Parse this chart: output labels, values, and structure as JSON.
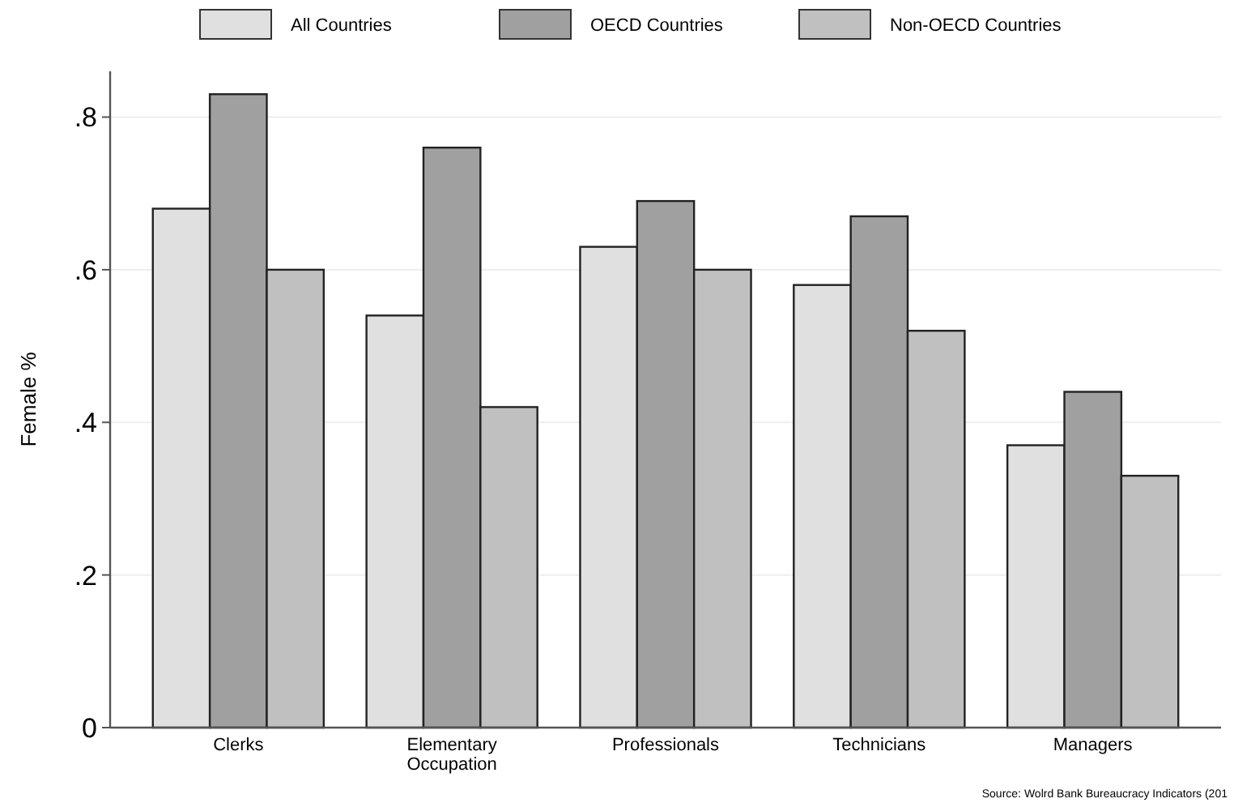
{
  "chart_data": {
    "type": "bar",
    "ylabel": "Female %",
    "categories": [
      "Clerks",
      "Elementary Occupation",
      "Professionals",
      "Technicians",
      "Managers"
    ],
    "series": [
      {
        "name": "All Countries",
        "color": "#e0e0e0",
        "values": [
          0.68,
          0.54,
          0.63,
          0.58,
          0.37
        ]
      },
      {
        "name": "OECD Countries",
        "color": "#a0a0a0",
        "values": [
          0.83,
          0.76,
          0.69,
          0.67,
          0.44
        ]
      },
      {
        "name": "Non-OECD Countries",
        "color": "#c0c0c0",
        "values": [
          0.6,
          0.42,
          0.6,
          0.52,
          0.33
        ]
      }
    ],
    "ylim": [
      0,
      0.86
    ],
    "yticks": [
      {
        "value": 0,
        "label": "0"
      },
      {
        "value": 0.2,
        "label": ".2"
      },
      {
        "value": 0.4,
        "label": ".4"
      },
      {
        "value": 0.6,
        "label": ".6"
      },
      {
        "value": 0.8,
        "label": ".8"
      }
    ],
    "grid": "y",
    "legend": "top",
    "annotations": [
      "Source:  Wolrd Bank Bureaucracy Indicators (201"
    ]
  }
}
